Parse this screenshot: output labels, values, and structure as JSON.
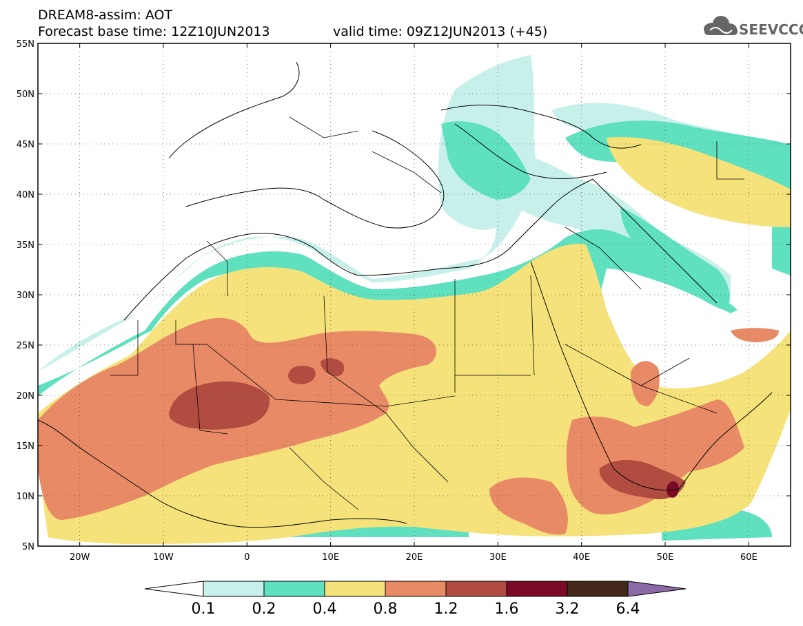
{
  "header": {
    "line1": "DREAM8-assim: AOT",
    "line2": "Forecast base time: 12Z10JUN2013",
    "valid": "valid time: 09Z12JUN2013 (+45)"
  },
  "logo": {
    "text": "SEEVCCC",
    "icon": "cloud-icon"
  },
  "map": {
    "lon_range": [
      -25,
      65
    ],
    "lat_range": [
      5,
      55
    ],
    "lat_ticks": [
      "5N",
      "10N",
      "15N",
      "20N",
      "25N",
      "30N",
      "35N",
      "40N",
      "45N",
      "50N",
      "55N"
    ],
    "lon_ticks": [
      "20W",
      "10W",
      "0",
      "10E",
      "20E",
      "30E",
      "40E",
      "50E",
      "60E"
    ],
    "grid": "dotted"
  },
  "legend": {
    "labels": [
      "0.1",
      "0.2",
      "0.4",
      "0.8",
      "1.2",
      "1.6",
      "3.2",
      "6.4"
    ],
    "colors": [
      "#c8f0ea",
      "#5fe0bf",
      "#f5e27a",
      "#e88a66",
      "#b04c40",
      "#7a0a25",
      "#42291a"
    ],
    "arrow_left": "#ffffff",
    "arrow_right": "#8c6aa8"
  },
  "colors": {
    "land": "#ffffff",
    "border": "#000000"
  }
}
